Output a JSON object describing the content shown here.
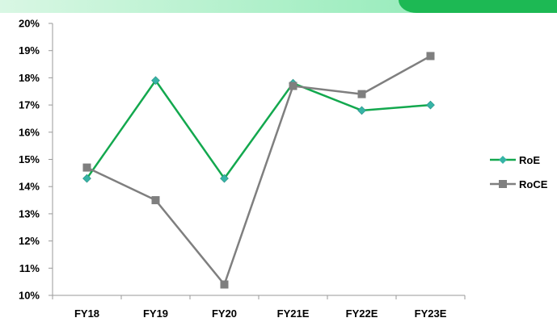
{
  "colors": {
    "roe": "#13a84e",
    "roe_marker": "#36b4a6",
    "roce": "#7f7f7f",
    "roce_marker": "#7f7f7f",
    "axis": "#9a9a9a",
    "banner_accent": "#1db954"
  },
  "chart_data": {
    "type": "line",
    "title": "",
    "xlabel": "",
    "ylabel": "",
    "categories": [
      "FY18",
      "FY19",
      "FY20",
      "FY21E",
      "FY22E",
      "FY23E"
    ],
    "yticks": [
      "20%",
      "19%",
      "18%",
      "17%",
      "16%",
      "15%",
      "14%",
      "13%",
      "12%",
      "11%",
      "10%"
    ],
    "ylim": [
      10,
      20
    ],
    "grid": false,
    "legend_position": "right",
    "series": [
      {
        "name": "RoE",
        "values": [
          14.3,
          17.9,
          14.3,
          17.8,
          16.8,
          17.0
        ]
      },
      {
        "name": "RoCE",
        "values": [
          14.7,
          13.5,
          10.4,
          17.7,
          17.4,
          18.8
        ]
      }
    ]
  }
}
